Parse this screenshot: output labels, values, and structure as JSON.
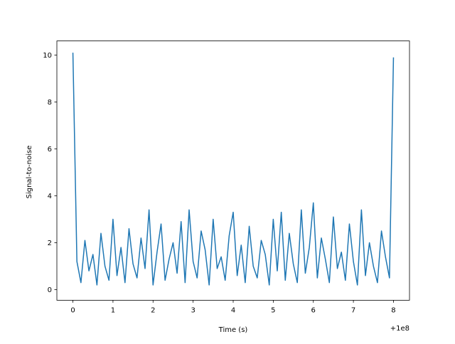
{
  "chart_data": {
    "type": "line",
    "x_label": "Time (s)",
    "y_label": "Signal-to-noise",
    "x_offset_label": "+1e8",
    "color": "#1f77b4",
    "x": [
      100000000,
      100000000.1,
      100000000.2,
      100000000.3,
      100000000.4,
      100000000.5,
      100000000.6,
      100000000.7,
      100000000.8,
      100000000.9,
      100000001,
      100000001.1,
      100000001.2,
      100000001.3,
      100000001.4,
      100000001.5,
      100000001.6,
      100000001.7,
      100000001.8,
      100000001.9,
      100000002,
      100000002.1,
      100000002.2,
      100000002.3,
      100000002.4,
      100000002.5,
      100000002.6,
      100000002.7,
      100000002.8,
      100000002.9,
      100000003,
      100000003.1,
      100000003.2,
      100000003.3,
      100000003.4,
      100000003.5,
      100000003.6,
      100000003.7,
      100000003.8,
      100000003.9,
      100000004,
      100000004.1,
      100000004.2,
      100000004.3,
      100000004.4,
      100000004.5,
      100000004.6,
      100000004.7,
      100000004.8,
      100000004.9,
      100000005,
      100000005.1,
      100000005.2,
      100000005.3,
      100000005.4,
      100000005.5,
      100000005.6,
      100000005.7,
      100000005.8,
      100000005.9,
      100000006,
      100000006.1,
      100000006.2,
      100000006.3,
      100000006.4,
      100000006.5,
      100000006.6,
      100000006.7,
      100000006.8,
      100000006.9,
      100000007,
      100000007.1,
      100000007.2,
      100000007.3,
      100000007.4,
      100000007.5,
      100000007.6,
      100000007.7,
      100000007.8,
      100000007.9,
      100000008
    ],
    "values": [
      10.1,
      1.2,
      0.3,
      2.1,
      0.8,
      1.5,
      0.2,
      2.4,
      1.0,
      0.4,
      3.0,
      0.6,
      1.8,
      0.3,
      2.6,
      1.1,
      0.5,
      2.2,
      0.9,
      3.4,
      0.2,
      1.6,
      2.8,
      0.4,
      1.3,
      2.0,
      0.7,
      2.9,
      0.3,
      3.4,
      1.2,
      0.5,
      2.5,
      1.7,
      0.2,
      3.0,
      0.9,
      1.4,
      0.4,
      2.3,
      3.3,
      0.6,
      1.9,
      0.3,
      2.7,
      1.0,
      0.5,
      2.1,
      1.5,
      0.2,
      3.0,
      0.8,
      3.3,
      0.4,
      2.4,
      1.1,
      0.3,
      3.4,
      0.7,
      1.8,
      3.7,
      0.5,
      2.2,
      1.3,
      0.3,
      3.1,
      0.9,
      1.6,
      0.4,
      2.8,
      1.2,
      0.2,
      3.4,
      0.6,
      2.0,
      1.0,
      0.3,
      2.5,
      1.4,
      0.5,
      9.9
    ],
    "xlim": [
      99999999.6,
      100000008.4
    ],
    "ylim": [
      -0.45,
      10.6
    ],
    "xticks": [
      {
        "value": 100000000,
        "label": "0"
      },
      {
        "value": 100000001,
        "label": "1"
      },
      {
        "value": 100000002,
        "label": "2"
      },
      {
        "value": 100000003,
        "label": "3"
      },
      {
        "value": 100000004,
        "label": "4"
      },
      {
        "value": 100000005,
        "label": "5"
      },
      {
        "value": 100000006,
        "label": "6"
      },
      {
        "value": 100000007,
        "label": "7"
      },
      {
        "value": 100000008,
        "label": "8"
      }
    ],
    "yticks": [
      0,
      2,
      4,
      6,
      8,
      10
    ],
    "grid": false
  }
}
